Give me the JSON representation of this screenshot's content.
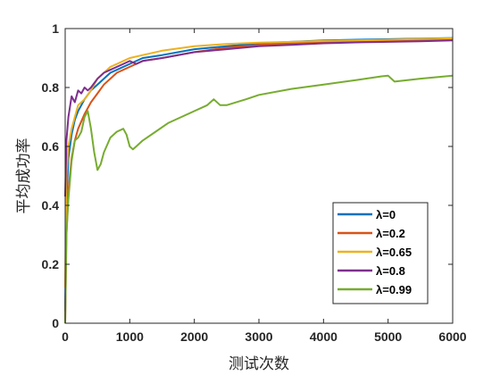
{
  "chart_data": {
    "type": "line",
    "xlabel": "测试次数",
    "ylabel": "平均成功率",
    "xlim": [
      0,
      6000
    ],
    "ylim": [
      0,
      1
    ],
    "xticks": [
      0,
      1000,
      2000,
      3000,
      4000,
      5000,
      6000
    ],
    "yticks": [
      0,
      0.2,
      0.4,
      0.6,
      0.8,
      1
    ],
    "xtick_labels": [
      "0",
      "1000",
      "2000",
      "3000",
      "4000",
      "5000",
      "6000"
    ],
    "ytick_labels": [
      "0",
      "0.2",
      "0.4",
      "0.6",
      "0.8",
      "1"
    ],
    "grid": false,
    "legend_position": "lower-right",
    "series": [
      {
        "name": "λ=0",
        "color": "#0072BD",
        "x": [
          0,
          20,
          50,
          100,
          150,
          200,
          300,
          400,
          500,
          600,
          700,
          800,
          900,
          1000,
          1200,
          1500,
          2000,
          2500,
          3000,
          3500,
          4000,
          4500,
          5000,
          5500,
          6000
        ],
        "y": [
          0.04,
          0.42,
          0.56,
          0.64,
          0.69,
          0.72,
          0.76,
          0.79,
          0.81,
          0.83,
          0.85,
          0.86,
          0.87,
          0.88,
          0.9,
          0.91,
          0.93,
          0.94,
          0.95,
          0.955,
          0.96,
          0.962,
          0.964,
          0.966,
          0.968
        ]
      },
      {
        "name": "λ=0.2",
        "color": "#D95319",
        "x": [
          0,
          20,
          50,
          100,
          150,
          200,
          300,
          400,
          500,
          600,
          700,
          800,
          900,
          1000,
          1200,
          1500,
          2000,
          2500,
          3000,
          3500,
          4000,
          4500,
          5000,
          5500,
          6000
        ],
        "y": [
          0.0,
          0.3,
          0.45,
          0.56,
          0.62,
          0.66,
          0.71,
          0.75,
          0.78,
          0.81,
          0.83,
          0.85,
          0.86,
          0.87,
          0.89,
          0.9,
          0.92,
          0.935,
          0.945,
          0.95,
          0.955,
          0.957,
          0.958,
          0.96,
          0.962
        ]
      },
      {
        "name": "λ=0.65",
        "color": "#EDB120",
        "x": [
          0,
          20,
          50,
          100,
          150,
          200,
          250,
          300,
          400,
          500,
          600,
          700,
          800,
          900,
          1000,
          1200,
          1500,
          2000,
          2500,
          3000,
          3500,
          4000,
          4500,
          5000,
          5500,
          6000
        ],
        "y": [
          0.12,
          0.5,
          0.6,
          0.66,
          0.7,
          0.74,
          0.75,
          0.76,
          0.79,
          0.83,
          0.85,
          0.87,
          0.88,
          0.89,
          0.9,
          0.91,
          0.925,
          0.94,
          0.948,
          0.952,
          0.955,
          0.958,
          0.96,
          0.962,
          0.965,
          0.967
        ]
      },
      {
        "name": "λ=0.8",
        "color": "#7E2F8E",
        "x": [
          0,
          20,
          50,
          100,
          150,
          200,
          250,
          300,
          350,
          400,
          500,
          600,
          700,
          800,
          900,
          1000,
          1100,
          1200,
          1500,
          2000,
          2500,
          3000,
          3500,
          4000,
          4500,
          5000,
          5500,
          6000
        ],
        "y": [
          0.43,
          0.62,
          0.7,
          0.77,
          0.75,
          0.79,
          0.78,
          0.8,
          0.79,
          0.8,
          0.83,
          0.85,
          0.86,
          0.87,
          0.88,
          0.89,
          0.88,
          0.89,
          0.9,
          0.92,
          0.93,
          0.94,
          0.945,
          0.95,
          0.953,
          0.955,
          0.957,
          0.96
        ]
      },
      {
        "name": "λ=0.99",
        "color": "#77AC30",
        "x": [
          0,
          20,
          50,
          100,
          150,
          200,
          250,
          300,
          350,
          400,
          450,
          500,
          550,
          600,
          700,
          800,
          900,
          950,
          1000,
          1050,
          1100,
          1200,
          1400,
          1600,
          1800,
          2000,
          2200,
          2300,
          2400,
          2500,
          2800,
          3000,
          3500,
          4000,
          4500,
          4900,
          5000,
          5100,
          5500,
          6000
        ],
        "y": [
          0.0,
          0.3,
          0.42,
          0.55,
          0.62,
          0.63,
          0.65,
          0.7,
          0.72,
          0.66,
          0.58,
          0.52,
          0.54,
          0.58,
          0.63,
          0.65,
          0.66,
          0.64,
          0.6,
          0.59,
          0.6,
          0.62,
          0.65,
          0.68,
          0.7,
          0.72,
          0.74,
          0.76,
          0.74,
          0.74,
          0.76,
          0.775,
          0.795,
          0.81,
          0.825,
          0.838,
          0.84,
          0.82,
          0.83,
          0.84
        ]
      }
    ]
  }
}
